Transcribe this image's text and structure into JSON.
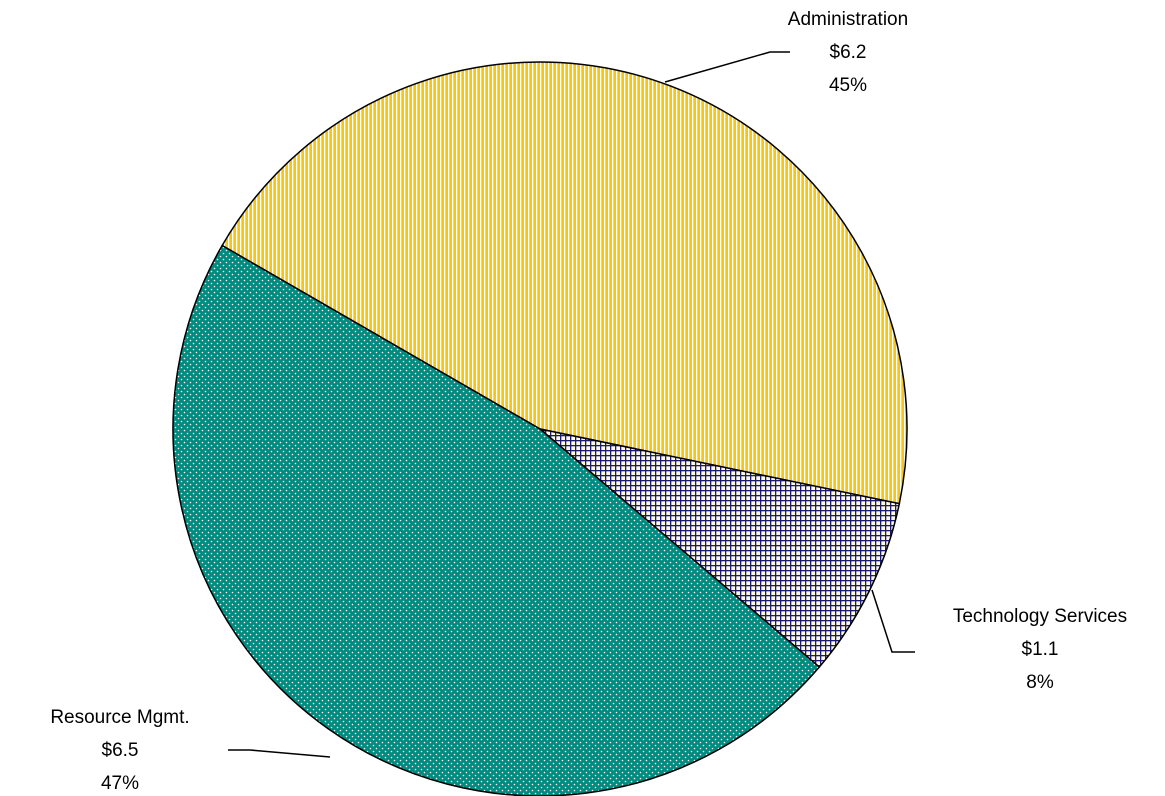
{
  "chart_data": {
    "type": "pie",
    "categories": [
      "Administration",
      "Technology Services",
      "Resource Mgmt."
    ],
    "values": [
      6.2,
      1.1,
      6.5
    ],
    "value_labels": [
      "$6.2",
      "$1.1",
      "$6.5"
    ],
    "percentages": [
      45,
      8,
      47
    ],
    "percentage_labels": [
      "45%",
      "8%",
      "47%"
    ],
    "colors": [
      "#f5c518",
      "#1a1a6e",
      "#008b80"
    ]
  }
}
